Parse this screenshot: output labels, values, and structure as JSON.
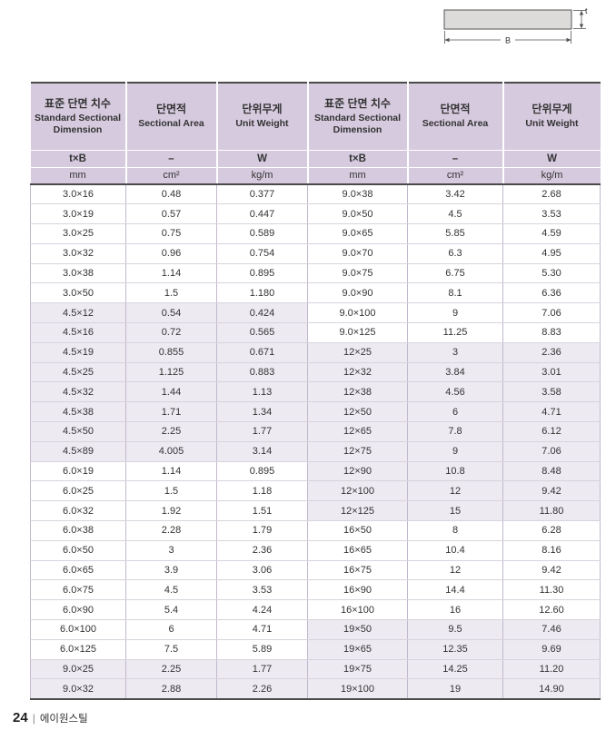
{
  "diagram": {
    "width_label": "B",
    "thickness_label": "t"
  },
  "table": {
    "header": {
      "dimension_ko": "표준 단면 치수",
      "dimension_en": "Standard Sectional Dimension",
      "area_ko": "단면적",
      "area_en": "Sectional Area",
      "weight_ko": "단위무게",
      "weight_en": "Unit Weight"
    },
    "symbols": {
      "dimension": "t×B",
      "area": "–",
      "weight": "W"
    },
    "units": {
      "dimension": "mm",
      "area": "cm²",
      "weight": "kg/m"
    },
    "left_rows": [
      {
        "dimension": "3.0×16",
        "area": "0.48",
        "weight": "0.377",
        "shaded": false
      },
      {
        "dimension": "3.0×19",
        "area": "0.57",
        "weight": "0.447",
        "shaded": false
      },
      {
        "dimension": "3.0×25",
        "area": "0.75",
        "weight": "0.589",
        "shaded": false
      },
      {
        "dimension": "3.0×32",
        "area": "0.96",
        "weight": "0.754",
        "shaded": false
      },
      {
        "dimension": "3.0×38",
        "area": "1.14",
        "weight": "0.895",
        "shaded": false
      },
      {
        "dimension": "3.0×50",
        "area": "1.5",
        "weight": "1.180",
        "shaded": false
      },
      {
        "dimension": "4.5×12",
        "area": "0.54",
        "weight": "0.424",
        "shaded": true
      },
      {
        "dimension": "4.5×16",
        "area": "0.72",
        "weight": "0.565",
        "shaded": true
      },
      {
        "dimension": "4.5×19",
        "area": "0.855",
        "weight": "0.671",
        "shaded": true
      },
      {
        "dimension": "4.5×25",
        "area": "1.125",
        "weight": "0.883",
        "shaded": true
      },
      {
        "dimension": "4.5×32",
        "area": "1.44",
        "weight": "1.13",
        "shaded": true
      },
      {
        "dimension": "4.5×38",
        "area": "1.71",
        "weight": "1.34",
        "shaded": true
      },
      {
        "dimension": "4.5×50",
        "area": "2.25",
        "weight": "1.77",
        "shaded": true
      },
      {
        "dimension": "4.5×89",
        "area": "4.005",
        "weight": "3.14",
        "shaded": true
      },
      {
        "dimension": "6.0×19",
        "area": "1.14",
        "weight": "0.895",
        "shaded": false
      },
      {
        "dimension": "6.0×25",
        "area": "1.5",
        "weight": "1.18",
        "shaded": false
      },
      {
        "dimension": "6.0×32",
        "area": "1.92",
        "weight": "1.51",
        "shaded": false
      },
      {
        "dimension": "6.0×38",
        "area": "2.28",
        "weight": "1.79",
        "shaded": false
      },
      {
        "dimension": "6.0×50",
        "area": "3",
        "weight": "2.36",
        "shaded": false
      },
      {
        "dimension": "6.0×65",
        "area": "3.9",
        "weight": "3.06",
        "shaded": false
      },
      {
        "dimension": "6.0×75",
        "area": "4.5",
        "weight": "3.53",
        "shaded": false
      },
      {
        "dimension": "6.0×90",
        "area": "5.4",
        "weight": "4.24",
        "shaded": false
      },
      {
        "dimension": "6.0×100",
        "area": "6",
        "weight": "4.71",
        "shaded": false
      },
      {
        "dimension": "6.0×125",
        "area": "7.5",
        "weight": "5.89",
        "shaded": false
      },
      {
        "dimension": "9.0×25",
        "area": "2.25",
        "weight": "1.77",
        "shaded": true
      },
      {
        "dimension": "9.0×32",
        "area": "2.88",
        "weight": "2.26",
        "shaded": true
      }
    ],
    "right_rows": [
      {
        "dimension": "9.0×38",
        "area": "3.42",
        "weight": "2.68",
        "shaded": false
      },
      {
        "dimension": "9.0×50",
        "area": "4.5",
        "weight": "3.53",
        "shaded": false
      },
      {
        "dimension": "9.0×65",
        "area": "5.85",
        "weight": "4.59",
        "shaded": false
      },
      {
        "dimension": "9.0×70",
        "area": "6.3",
        "weight": "4.95",
        "shaded": false
      },
      {
        "dimension": "9.0×75",
        "area": "6.75",
        "weight": "5.30",
        "shaded": false
      },
      {
        "dimension": "9.0×90",
        "area": "8.1",
        "weight": "6.36",
        "shaded": false
      },
      {
        "dimension": "9.0×100",
        "area": "9",
        "weight": "7.06",
        "shaded": false
      },
      {
        "dimension": "9.0×125",
        "area": "11.25",
        "weight": "8.83",
        "shaded": false
      },
      {
        "dimension": "12×25",
        "area": "3",
        "weight": "2.36",
        "shaded": true
      },
      {
        "dimension": "12×32",
        "area": "3.84",
        "weight": "3.01",
        "shaded": true
      },
      {
        "dimension": "12×38",
        "area": "4.56",
        "weight": "3.58",
        "shaded": true
      },
      {
        "dimension": "12×50",
        "area": "6",
        "weight": "4.71",
        "shaded": true
      },
      {
        "dimension": "12×65",
        "area": "7.8",
        "weight": "6.12",
        "shaded": true
      },
      {
        "dimension": "12×75",
        "area": "9",
        "weight": "7.06",
        "shaded": true
      },
      {
        "dimension": "12×90",
        "area": "10.8",
        "weight": "8.48",
        "shaded": true
      },
      {
        "dimension": "12×100",
        "area": "12",
        "weight": "9.42",
        "shaded": true
      },
      {
        "dimension": "12×125",
        "area": "15",
        "weight": "11.80",
        "shaded": true
      },
      {
        "dimension": "16×50",
        "area": "8",
        "weight": "6.28",
        "shaded": false
      },
      {
        "dimension": "16×65",
        "area": "10.4",
        "weight": "8.16",
        "shaded": false
      },
      {
        "dimension": "16×75",
        "area": "12",
        "weight": "9.42",
        "shaded": false
      },
      {
        "dimension": "16×90",
        "area": "14.4",
        "weight": "11.30",
        "shaded": false
      },
      {
        "dimension": "16×100",
        "area": "16",
        "weight": "12.60",
        "shaded": false
      },
      {
        "dimension": "19×50",
        "area": "9.5",
        "weight": "7.46",
        "shaded": true
      },
      {
        "dimension": "19×65",
        "area": "12.35",
        "weight": "9.69",
        "shaded": true
      },
      {
        "dimension": "19×75",
        "area": "14.25",
        "weight": "11.20",
        "shaded": true
      },
      {
        "dimension": "19×100",
        "area": "19",
        "weight": "14.90",
        "shaded": true
      }
    ]
  },
  "footer": {
    "page_number": "24",
    "separator": "|",
    "brand": "에이원스틸"
  },
  "colors": {
    "header_bg": "#d6cade",
    "shaded_row_bg": "#edeaf1",
    "heavy_border": "#4a4a4a",
    "grid_v": "#c2b8cd",
    "grid_h": "#d8d3dd"
  }
}
